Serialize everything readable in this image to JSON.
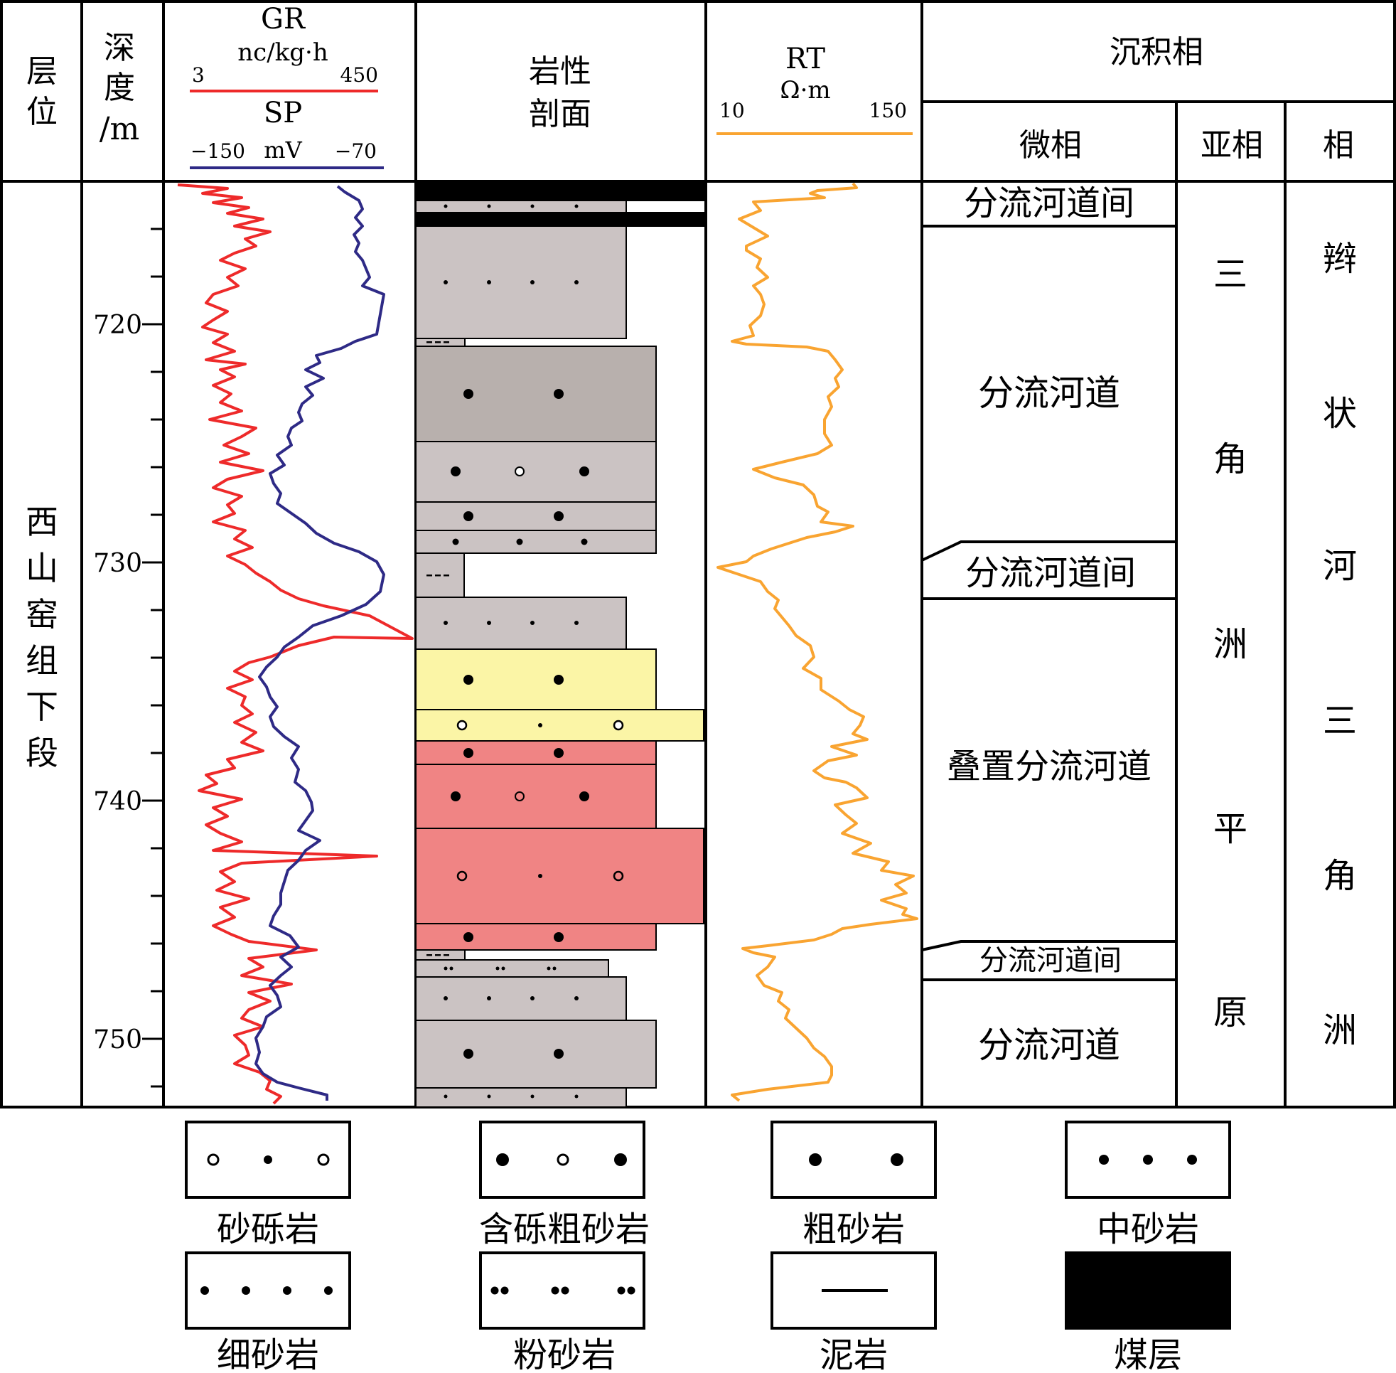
{
  "header": {
    "layer": [
      "层",
      "位"
    ],
    "depth": [
      "深",
      "度",
      "/m"
    ],
    "gr": {
      "name": "GR",
      "unit": "nc/kg·h",
      "min": "3",
      "max": "450",
      "color": "#ee2a2a"
    },
    "sp": {
      "name": "SP",
      "unit": "mV",
      "min": "−150",
      "max": "−70",
      "color": "#2e2a86"
    },
    "lithology": [
      "岩性",
      "剖面"
    ],
    "rt": {
      "name": "RT",
      "unit": "Ω·m",
      "min": "10",
      "max": "150",
      "color": "#f9a431"
    },
    "facies": {
      "title": "沉积相",
      "micro": "微相",
      "sub": "亚相",
      "main": "相"
    }
  },
  "formation": [
    "西",
    "山",
    "窑",
    "组",
    "下",
    "段"
  ],
  "depth_ticks": [
    "720",
    "730",
    "740",
    "750"
  ],
  "micro_facies": [
    "分流河道间",
    "分流河道",
    "分流河道间",
    "叠置分流河道",
    "分流河道间",
    "分流河道"
  ],
  "sub_facies": [
    "三",
    "角",
    "洲",
    "平",
    "原"
  ],
  "main_facies": [
    "辫",
    "状",
    "河",
    "三",
    "角",
    "洲"
  ],
  "legend": [
    {
      "label": "砂砾岩",
      "pattern": "conglomeratic-sandstone"
    },
    {
      "label": "含砾粗砂岩",
      "pattern": "pebbly-coarse-sandstone"
    },
    {
      "label": "粗砂岩",
      "pattern": "coarse-sandstone"
    },
    {
      "label": "中砂岩",
      "pattern": "medium-sandstone"
    },
    {
      "label": "细砂岩",
      "pattern": "fine-sandstone"
    },
    {
      "label": "粉砂岩",
      "pattern": "siltstone"
    },
    {
      "label": "泥岩",
      "pattern": "mudstone"
    },
    {
      "label": "煤层",
      "pattern": "coal-seam"
    }
  ],
  "colors": {
    "gray_sand": "#cbc3c3",
    "dark_sand": "#b8b0ad",
    "yellow_sand": "#fbf5a6",
    "pink_sand": "#f08484",
    "coal": "#000000"
  }
}
